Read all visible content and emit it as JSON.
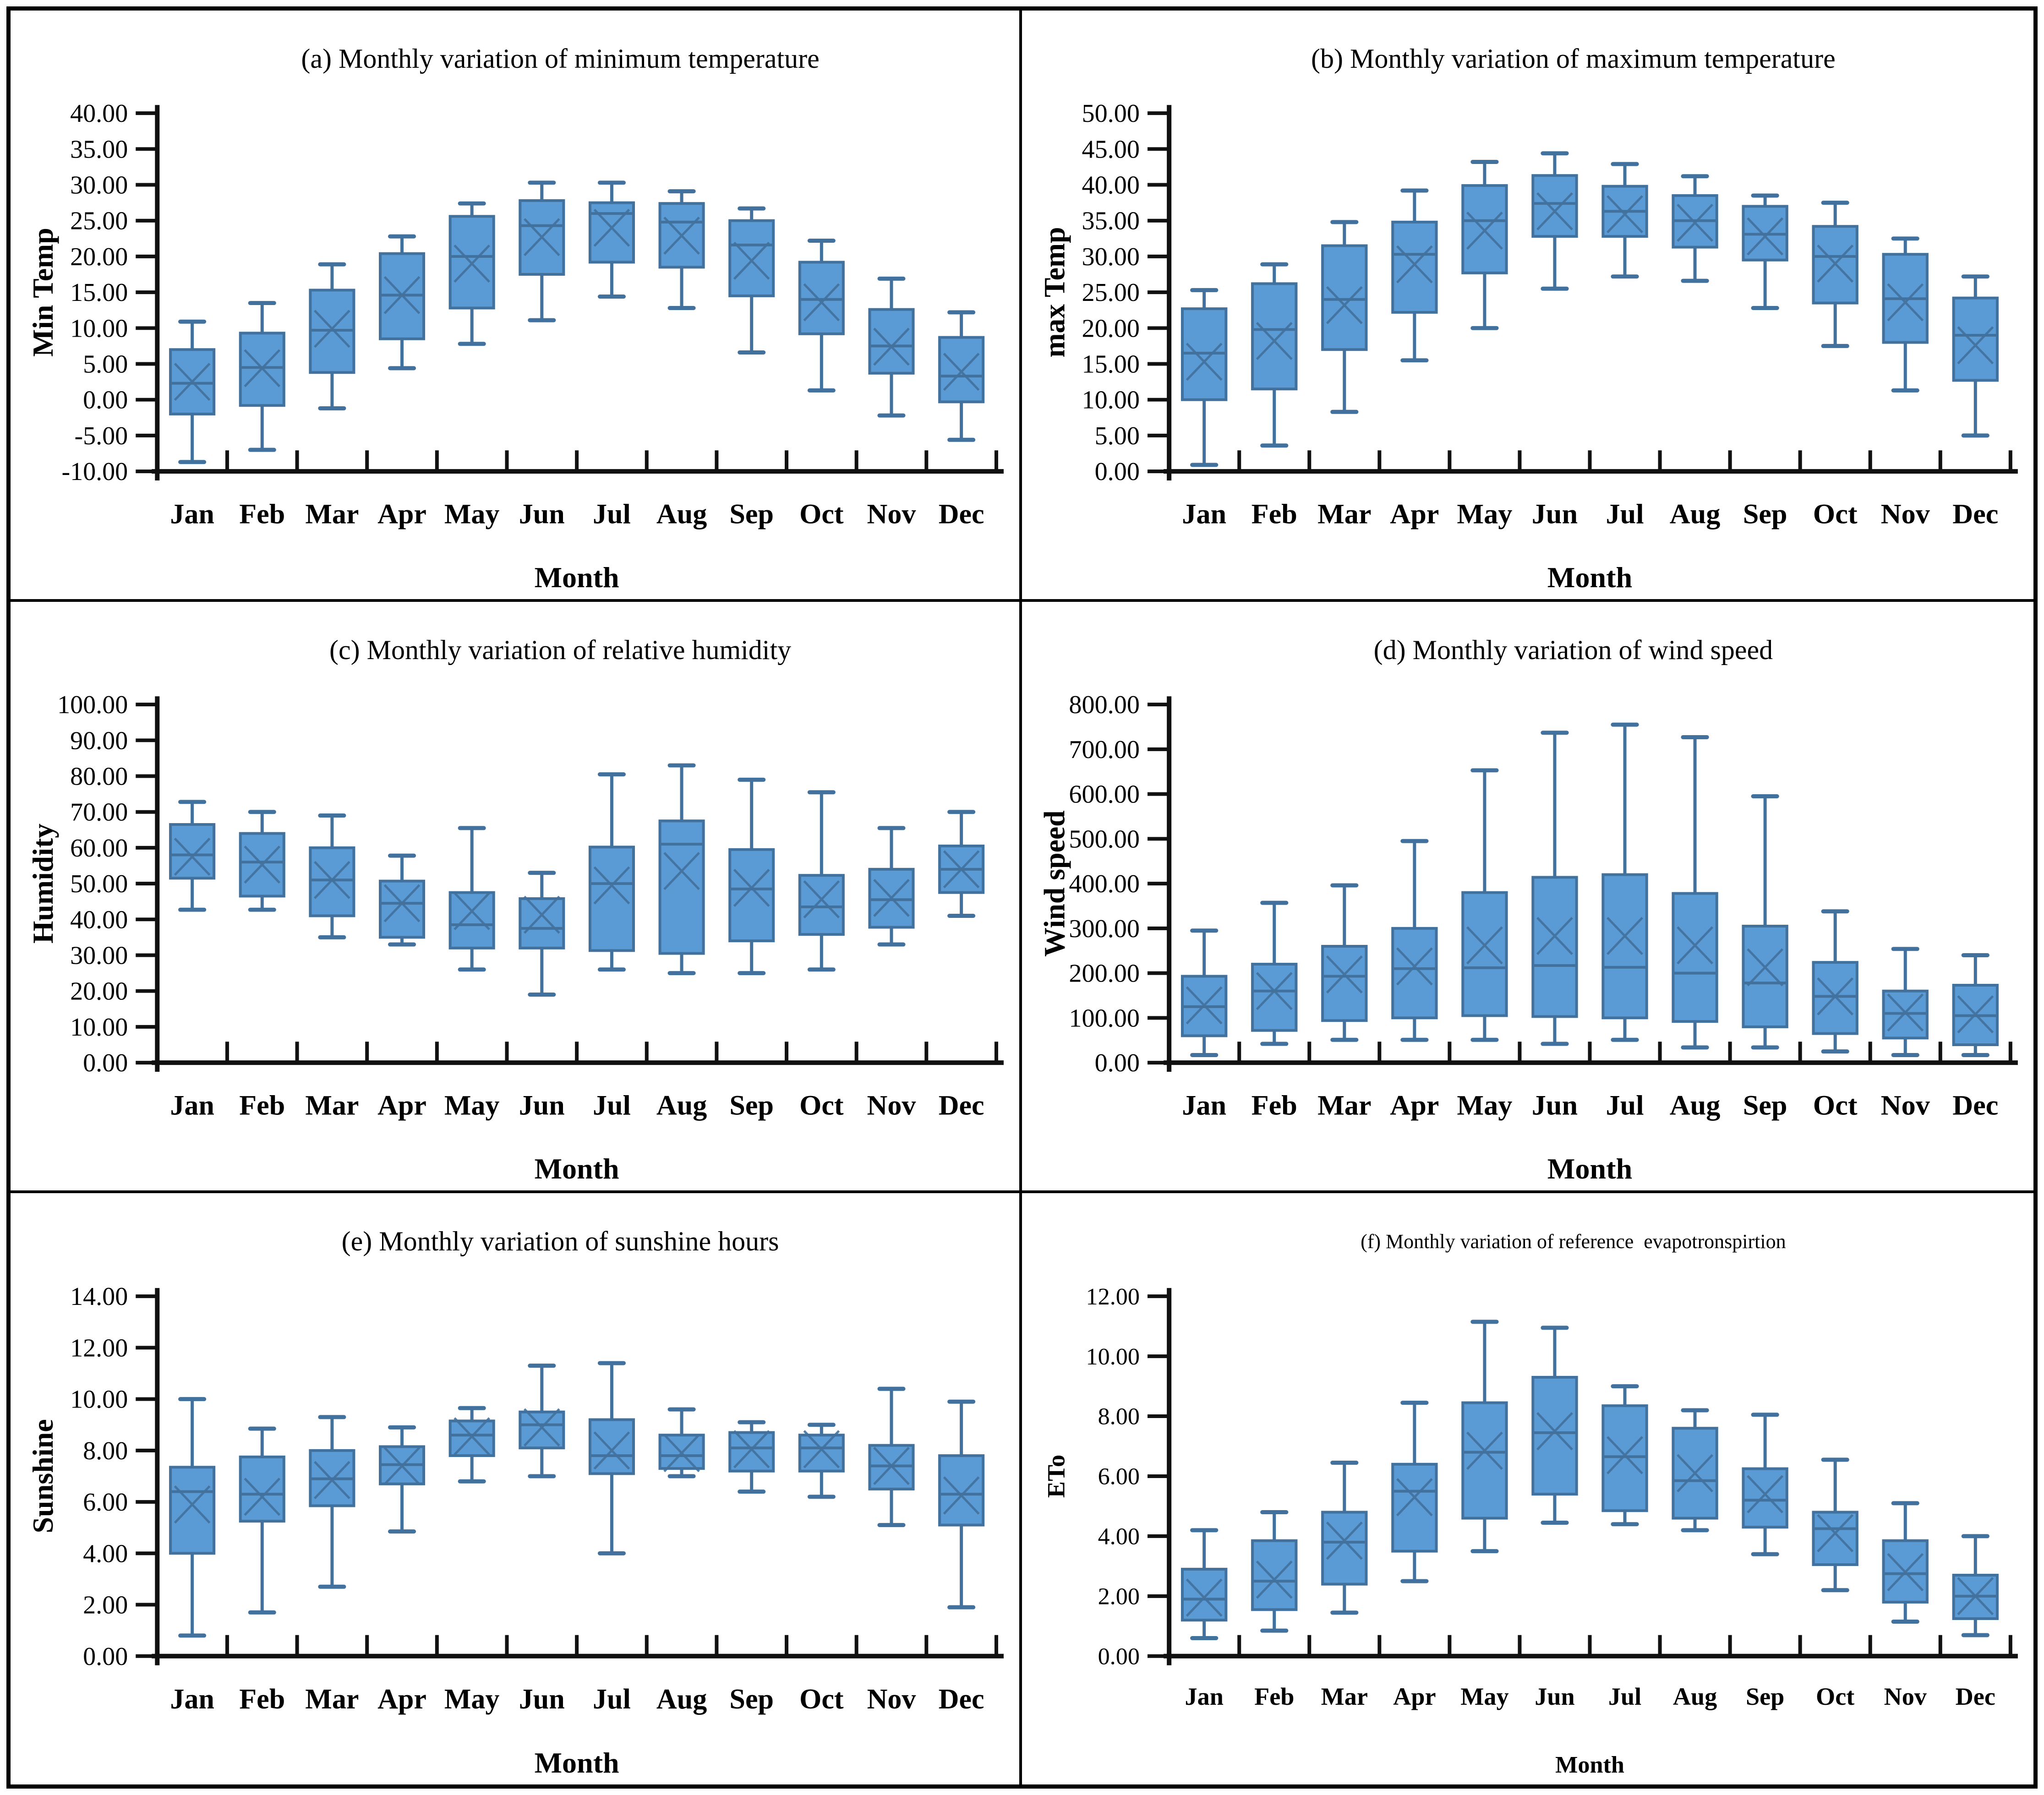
{
  "figure": {
    "type": "box-plot-grid",
    "columns": 2,
    "rows": 3
  },
  "months": [
    "Jan",
    "Feb",
    "Mar",
    "Apr",
    "May",
    "Jun",
    "Jul",
    "Aug",
    "Sep",
    "Oct",
    "Nov",
    "Dec"
  ],
  "colors": {
    "box_fill": "#5B9BD5",
    "box_stroke": "#41719C",
    "axis": "#111111",
    "text": "#000000"
  },
  "chart_data": [
    {
      "type": "boxplot",
      "panel": "a",
      "title": "(a) Monthly variation of minimum temperature",
      "ylabel": "Min Temp",
      "xlabel": "Month",
      "ylim": [
        -10,
        40
      ],
      "yticks": [
        "40.00",
        "35.00",
        "30.00",
        "25.00",
        "20.00",
        "15.00",
        "10.00",
        "5.00",
        "0.00",
        "-5.00",
        "-10.00"
      ],
      "boxes": [
        {
          "month": "Jan",
          "low": -8.7,
          "q1": -2.0,
          "med": 2.3,
          "mean": 2.5,
          "q3": 7.0,
          "high": 10.9
        },
        {
          "month": "Feb",
          "low": -7.0,
          "q1": -0.8,
          "med": 4.5,
          "mean": 4.4,
          "q3": 9.3,
          "high": 13.5
        },
        {
          "month": "Mar",
          "low": -1.2,
          "q1": 3.8,
          "med": 9.7,
          "mean": 9.9,
          "q3": 15.3,
          "high": 18.9
        },
        {
          "month": "Apr",
          "low": 4.4,
          "q1": 8.5,
          "med": 14.6,
          "mean": 14.6,
          "q3": 20.4,
          "high": 22.8
        },
        {
          "month": "May",
          "low": 7.8,
          "q1": 12.8,
          "med": 20.0,
          "mean": 19.0,
          "q3": 25.6,
          "high": 27.4
        },
        {
          "month": "Jun",
          "low": 11.1,
          "q1": 17.5,
          "med": 24.3,
          "mean": 22.7,
          "q3": 27.8,
          "high": 30.3
        },
        {
          "month": "Jul",
          "low": 14.4,
          "q1": 19.2,
          "med": 26.0,
          "mean": 24.0,
          "q3": 27.5,
          "high": 30.3
        },
        {
          "month": "Aug",
          "low": 12.8,
          "q1": 18.5,
          "med": 24.8,
          "mean": 22.9,
          "q3": 27.4,
          "high": 29.1
        },
        {
          "month": "Sep",
          "low": 6.6,
          "q1": 14.5,
          "med": 21.6,
          "mean": 19.4,
          "q3": 25.0,
          "high": 26.7
        },
        {
          "month": "Oct",
          "low": 1.3,
          "q1": 9.2,
          "med": 14.0,
          "mean": 13.6,
          "q3": 19.2,
          "high": 22.2
        },
        {
          "month": "Nov",
          "low": -2.2,
          "q1": 3.7,
          "med": 7.5,
          "mean": 7.4,
          "q3": 12.6,
          "high": 16.9
        },
        {
          "month": "Dec",
          "low": -5.6,
          "q1": -0.3,
          "med": 3.3,
          "mean": 3.9,
          "q3": 8.7,
          "high": 12.2
        }
      ]
    },
    {
      "type": "boxplot",
      "panel": "b",
      "title": "(b) Monthly variation of maximum temperature",
      "ylabel": "max Temp",
      "xlabel": "Month",
      "ylim": [
        0,
        50
      ],
      "yticks": [
        "50.00",
        "45.00",
        "40.00",
        "35.00",
        "30.00",
        "25.00",
        "20.00",
        "15.00",
        "10.00",
        "5.00",
        "0.00"
      ],
      "boxes": [
        {
          "month": "Jan",
          "low": 0.9,
          "q1": 10.0,
          "med": 16.5,
          "mean": 15.3,
          "q3": 22.7,
          "high": 25.3
        },
        {
          "month": "Feb",
          "low": 3.6,
          "q1": 11.5,
          "med": 19.8,
          "mean": 18.2,
          "q3": 26.2,
          "high": 28.9
        },
        {
          "month": "Mar",
          "low": 8.3,
          "q1": 17.0,
          "med": 24.0,
          "mean": 23.2,
          "q3": 31.5,
          "high": 34.8
        },
        {
          "month": "Apr",
          "low": 15.5,
          "q1": 22.2,
          "med": 30.3,
          "mean": 28.9,
          "q3": 34.8,
          "high": 39.2
        },
        {
          "month": "May",
          "low": 20.0,
          "q1": 27.7,
          "med": 35.0,
          "mean": 33.6,
          "q3": 39.9,
          "high": 43.2
        },
        {
          "month": "Jun",
          "low": 25.5,
          "q1": 32.8,
          "med": 37.4,
          "mean": 36.3,
          "q3": 41.3,
          "high": 44.4
        },
        {
          "month": "Jul",
          "low": 27.2,
          "q1": 32.8,
          "med": 36.3,
          "mean": 35.9,
          "q3": 39.8,
          "high": 42.9
        },
        {
          "month": "Aug",
          "low": 26.6,
          "q1": 31.3,
          "med": 35.0,
          "mean": 34.7,
          "q3": 38.5,
          "high": 41.2
        },
        {
          "month": "Sep",
          "low": 22.8,
          "q1": 29.5,
          "med": 33.1,
          "mean": 32.8,
          "q3": 37.0,
          "high": 38.5
        },
        {
          "month": "Oct",
          "low": 17.5,
          "q1": 23.5,
          "med": 30.0,
          "mean": 29.0,
          "q3": 34.2,
          "high": 37.5
        },
        {
          "month": "Nov",
          "low": 11.3,
          "q1": 18.0,
          "med": 24.1,
          "mean": 23.6,
          "q3": 30.3,
          "high": 32.5
        },
        {
          "month": "Dec",
          "low": 5.0,
          "q1": 12.7,
          "med": 19.0,
          "mean": 17.6,
          "q3": 24.2,
          "high": 27.2
        }
      ]
    },
    {
      "type": "boxplot",
      "panel": "c",
      "title": "(c) Monthly variation of relative humidity",
      "ylabel": "Humidity",
      "xlabel": "Month",
      "ylim": [
        0,
        100
      ],
      "yticks": [
        "100.00",
        "90.00",
        "80.00",
        "70.00",
        "60.00",
        "50.00",
        "40.00",
        "30.00",
        "20.00",
        "10.00",
        "0.00"
      ],
      "boxes": [
        {
          "month": "Jan",
          "low": 42.7,
          "q1": 51.5,
          "med": 58.0,
          "mean": 57.5,
          "q3": 66.5,
          "high": 72.8
        },
        {
          "month": "Feb",
          "low": 42.7,
          "q1": 46.5,
          "med": 56.0,
          "mean": 55.3,
          "q3": 64.0,
          "high": 70.0
        },
        {
          "month": "Mar",
          "low": 35.0,
          "q1": 41.0,
          "med": 51.0,
          "mean": 51.0,
          "q3": 60.0,
          "high": 69.0
        },
        {
          "month": "Apr",
          "low": 33.0,
          "q1": 35.0,
          "med": 44.5,
          "mean": 44.5,
          "q3": 50.7,
          "high": 57.8
        },
        {
          "month": "May",
          "low": 26.0,
          "q1": 32.0,
          "med": 38.5,
          "mean": 42.3,
          "q3": 47.5,
          "high": 65.5
        },
        {
          "month": "Jun",
          "low": 19.0,
          "q1": 32.0,
          "med": 37.5,
          "mean": 41.3,
          "q3": 45.8,
          "high": 53.0
        },
        {
          "month": "Jul",
          "low": 26.0,
          "q1": 31.3,
          "med": 50.0,
          "mean": 49.5,
          "q3": 60.2,
          "high": 80.5
        },
        {
          "month": "Aug",
          "low": 25.0,
          "q1": 30.5,
          "med": 61.0,
          "mean": 53.5,
          "q3": 67.5,
          "high": 83.0
        },
        {
          "month": "Sep",
          "low": 25.0,
          "q1": 34.0,
          "med": 48.5,
          "mean": 48.8,
          "q3": 59.5,
          "high": 79.0
        },
        {
          "month": "Oct",
          "low": 26.0,
          "q1": 35.8,
          "med": 43.5,
          "mean": 45.6,
          "q3": 52.3,
          "high": 75.5
        },
        {
          "month": "Nov",
          "low": 33.0,
          "q1": 37.8,
          "med": 45.5,
          "mean": 46.0,
          "q3": 54.0,
          "high": 65.5
        },
        {
          "month": "Dec",
          "low": 41.0,
          "q1": 47.5,
          "med": 54.0,
          "mean": 54.0,
          "q3": 60.5,
          "high": 70.0
        }
      ]
    },
    {
      "type": "boxplot",
      "panel": "d",
      "title": "(d) Monthly variation of wind speed",
      "ylabel": "Wind speed",
      "xlabel": "Month",
      "ylim": [
        0,
        800
      ],
      "yticks": [
        "800.00",
        "700.00",
        "600.00",
        "500.00",
        "400.00",
        "300.00",
        "200.00",
        "100.00",
        "0.00"
      ],
      "boxes": [
        {
          "month": "Jan",
          "low": 17,
          "q1": 60,
          "med": 125,
          "mean": 128,
          "q3": 193,
          "high": 295
        },
        {
          "month": "Feb",
          "low": 42,
          "q1": 72,
          "med": 160,
          "mean": 160,
          "q3": 220,
          "high": 357
        },
        {
          "month": "Mar",
          "low": 51,
          "q1": 94,
          "med": 193,
          "mean": 197,
          "q3": 260,
          "high": 396
        },
        {
          "month": "Apr",
          "low": 51,
          "q1": 100,
          "med": 210,
          "mean": 215,
          "q3": 300,
          "high": 495
        },
        {
          "month": "May",
          "low": 51,
          "q1": 105,
          "med": 212,
          "mean": 262,
          "q3": 380,
          "high": 653
        },
        {
          "month": "Jun",
          "low": 42,
          "q1": 103,
          "med": 217,
          "mean": 283,
          "q3": 414,
          "high": 737
        },
        {
          "month": "Jul",
          "low": 51,
          "q1": 100,
          "med": 213,
          "mean": 283,
          "q3": 420,
          "high": 755
        },
        {
          "month": "Aug",
          "low": 34,
          "q1": 92,
          "med": 200,
          "mean": 262,
          "q3": 378,
          "high": 727
        },
        {
          "month": "Sep",
          "low": 34,
          "q1": 80,
          "med": 178,
          "mean": 213,
          "q3": 305,
          "high": 595
        },
        {
          "month": "Oct",
          "low": 25,
          "q1": 65,
          "med": 148,
          "mean": 148,
          "q3": 224,
          "high": 338
        },
        {
          "month": "Nov",
          "low": 17,
          "q1": 55,
          "med": 110,
          "mean": 112,
          "q3": 160,
          "high": 254
        },
        {
          "month": "Dec",
          "low": 17,
          "q1": 40,
          "med": 105,
          "mean": 108,
          "q3": 173,
          "high": 240
        }
      ]
    },
    {
      "type": "boxplot",
      "panel": "e",
      "title": "(e) Monthly variation of sunshine hours",
      "ylabel": "Sunshine",
      "xlabel": "Month",
      "ylim": [
        0,
        14
      ],
      "yticks": [
        "14.00",
        "12.00",
        "10.00",
        "8.00",
        "6.00",
        "4.00",
        "2.00",
        "0.00"
      ],
      "boxes": [
        {
          "month": "Jan",
          "low": 0.8,
          "q1": 4.0,
          "med": 6.4,
          "mean": 5.9,
          "q3": 7.35,
          "high": 10.0
        },
        {
          "month": "Feb",
          "low": 1.7,
          "q1": 5.25,
          "med": 6.3,
          "mean": 6.2,
          "q3": 7.75,
          "high": 8.85
        },
        {
          "month": "Mar",
          "low": 2.7,
          "q1": 5.85,
          "med": 6.9,
          "mean": 6.85,
          "q3": 8.0,
          "high": 9.3
        },
        {
          "month": "Apr",
          "low": 4.85,
          "q1": 6.7,
          "med": 7.45,
          "mean": 7.4,
          "q3": 8.15,
          "high": 8.9
        },
        {
          "month": "May",
          "low": 6.8,
          "q1": 7.8,
          "med": 8.6,
          "mean": 8.55,
          "q3": 9.15,
          "high": 9.65
        },
        {
          "month": "Jun",
          "low": 7.0,
          "q1": 8.1,
          "med": 9.0,
          "mean": 8.9,
          "q3": 9.5,
          "high": 11.3
        },
        {
          "month": "Jul",
          "low": 4.0,
          "q1": 7.1,
          "med": 7.8,
          "mean": 8.0,
          "q3": 9.2,
          "high": 11.4
        },
        {
          "month": "Aug",
          "low": 7.0,
          "q1": 7.3,
          "med": 7.8,
          "mean": 7.9,
          "q3": 8.6,
          "high": 9.6
        },
        {
          "month": "Sep",
          "low": 6.4,
          "q1": 7.2,
          "med": 8.1,
          "mean": 8.05,
          "q3": 8.7,
          "high": 9.1
        },
        {
          "month": "Oct",
          "low": 6.2,
          "q1": 7.2,
          "med": 8.1,
          "mean": 8.05,
          "q3": 8.6,
          "high": 9.0
        },
        {
          "month": "Nov",
          "low": 5.1,
          "q1": 6.5,
          "med": 7.4,
          "mean": 7.4,
          "q3": 8.2,
          "high": 10.4
        },
        {
          "month": "Dec",
          "low": 1.9,
          "q1": 5.1,
          "med": 6.3,
          "mean": 6.25,
          "q3": 7.8,
          "high": 9.9
        }
      ]
    },
    {
      "type": "boxplot",
      "panel": "f",
      "title": "(f) Monthly variation of reference  evapotronspirtion",
      "ylabel": "ETo",
      "xlabel": "Month",
      "ylim": [
        0,
        12
      ],
      "yticks": [
        "12.00",
        "10.00",
        "8.00",
        "6.00",
        "4.00",
        "2.00",
        "0.00"
      ],
      "boxes": [
        {
          "month": "Jan",
          "low": 0.6,
          "q1": 1.2,
          "med": 1.9,
          "mean": 1.95,
          "q3": 2.9,
          "high": 4.2
        },
        {
          "month": "Feb",
          "low": 0.85,
          "q1": 1.55,
          "med": 2.5,
          "mean": 2.55,
          "q3": 3.85,
          "high": 4.8
        },
        {
          "month": "Mar",
          "low": 1.45,
          "q1": 2.4,
          "med": 3.8,
          "mean": 3.85,
          "q3": 4.8,
          "high": 6.45
        },
        {
          "month": "Apr",
          "low": 2.5,
          "q1": 3.5,
          "med": 5.5,
          "mean": 5.3,
          "q3": 6.4,
          "high": 8.45
        },
        {
          "month": "May",
          "low": 3.5,
          "q1": 4.6,
          "med": 6.8,
          "mean": 6.85,
          "q3": 8.45,
          "high": 11.15
        },
        {
          "month": "Jun",
          "low": 4.45,
          "q1": 5.4,
          "med": 7.45,
          "mean": 7.5,
          "q3": 9.3,
          "high": 10.95
        },
        {
          "month": "Jul",
          "low": 4.4,
          "q1": 4.85,
          "med": 6.65,
          "mean": 6.7,
          "q3": 8.35,
          "high": 9.0
        },
        {
          "month": "Aug",
          "low": 4.2,
          "q1": 4.6,
          "med": 5.85,
          "mean": 6.1,
          "q3": 7.6,
          "high": 8.2
        },
        {
          "month": "Sep",
          "low": 3.4,
          "q1": 4.3,
          "med": 5.2,
          "mean": 5.4,
          "q3": 6.25,
          "high": 8.05
        },
        {
          "month": "Oct",
          "low": 2.2,
          "q1": 3.05,
          "med": 4.25,
          "mean": 4.1,
          "q3": 4.8,
          "high": 6.55
        },
        {
          "month": "Nov",
          "low": 1.15,
          "q1": 1.8,
          "med": 2.75,
          "mean": 2.8,
          "q3": 3.85,
          "high": 5.1
        },
        {
          "month": "Dec",
          "low": 0.7,
          "q1": 1.25,
          "med": 2.0,
          "mean": 2.0,
          "q3": 2.7,
          "high": 4.0
        }
      ]
    }
  ]
}
